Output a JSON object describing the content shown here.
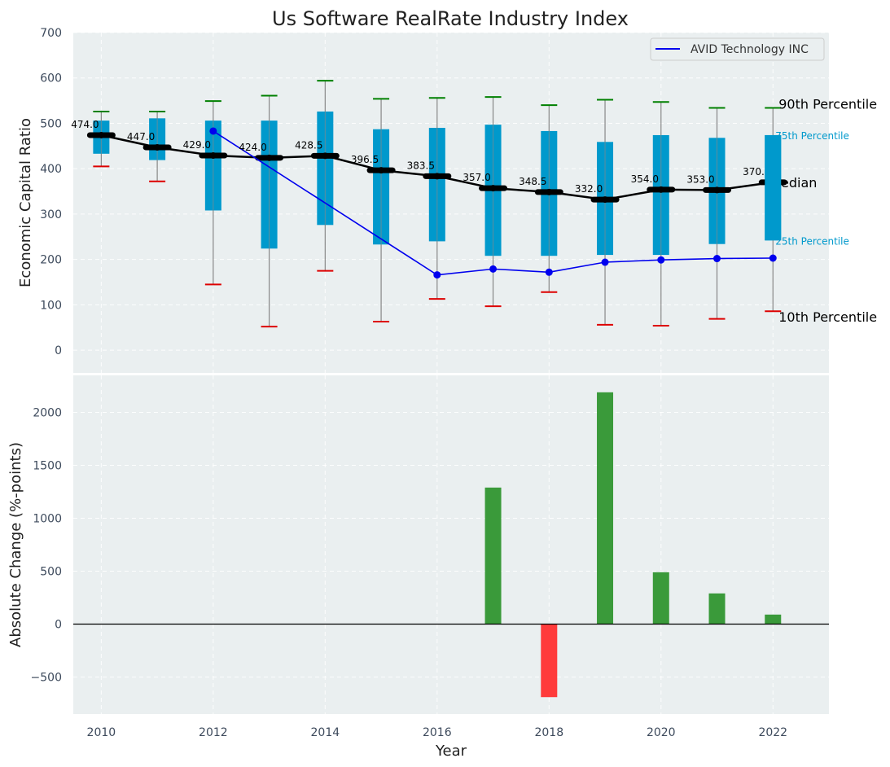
{
  "chart_data": [
    {
      "type": "box",
      "title": "Us Software RealRate Industry Index",
      "ylabel": "Economic Capital Ratio",
      "ylim": [
        -50,
        700
      ],
      "yticks": [
        0,
        100,
        200,
        300,
        400,
        500,
        600,
        700
      ],
      "years": [
        2010,
        2011,
        2012,
        2013,
        2014,
        2015,
        2016,
        2017,
        2018,
        2019,
        2020,
        2021,
        2022
      ],
      "p10": [
        405,
        372,
        145,
        52,
        175,
        63,
        113,
        97,
        128,
        56,
        54,
        69,
        86
      ],
      "p25": [
        433,
        419,
        308,
        224,
        276,
        233,
        240,
        208,
        208,
        210,
        210,
        234,
        242
      ],
      "median": [
        474.0,
        447.0,
        429.0,
        424.0,
        428.5,
        396.5,
        383.5,
        357.0,
        348.5,
        332.0,
        354.0,
        353.0,
        370.0
      ],
      "median_labels": [
        "474.0",
        "447.0",
        "429.0",
        "424.0",
        "428.5",
        "396.5",
        "383.5",
        "357.0",
        "348.5",
        "332.0",
        "354.0",
        "353.0",
        "370.0"
      ],
      "p75": [
        506,
        511,
        506,
        506,
        526,
        487,
        490,
        497,
        483,
        459,
        474,
        468,
        474
      ],
      "p90": [
        526,
        526,
        549,
        561,
        594,
        554,
        556,
        558,
        540,
        552,
        547,
        534,
        534
      ],
      "company": {
        "name": "AVID Technology INC",
        "years": [
          2012,
          2016,
          2017,
          2018,
          2019,
          2020,
          2021,
          2022
        ],
        "values": [
          483,
          166,
          179,
          172,
          194,
          199,
          202,
          203
        ]
      },
      "side_labels": {
        "p90": "90th Percentile",
        "p75": "75th Percentile",
        "median": "Median",
        "p25": "25th Percentile",
        "p10": "10th Percentile"
      },
      "legend": "top-right",
      "grid": true
    },
    {
      "type": "bar",
      "xlabel": "Year",
      "ylabel": "Absolute Change (%-points)",
      "ylim": [
        -850,
        2350
      ],
      "yticks": [
        -500,
        0,
        500,
        1000,
        1500,
        2000
      ],
      "ytick_labels": [
        "−500",
        "0",
        "500",
        "1000",
        "1500",
        "2000"
      ],
      "xticks": [
        2010,
        2012,
        2014,
        2016,
        2018,
        2020,
        2022
      ],
      "xlim": [
        2009.5,
        2023
      ],
      "categories": [
        2017,
        2018,
        2019,
        2020,
        2021,
        2022
      ],
      "values": [
        1290,
        -690,
        2190,
        490,
        290,
        90
      ],
      "grid": true
    }
  ],
  "colors": {
    "plot_bg": "#eaeff0",
    "box": "#0099cc",
    "median": "#000000",
    "company": "#0000ee",
    "p90_cap": "#008000",
    "p10_cap": "#dd0000",
    "whisker": "#888888",
    "bar_pos": "#3a9a3a",
    "bar_neg": "#ff3b3b"
  }
}
